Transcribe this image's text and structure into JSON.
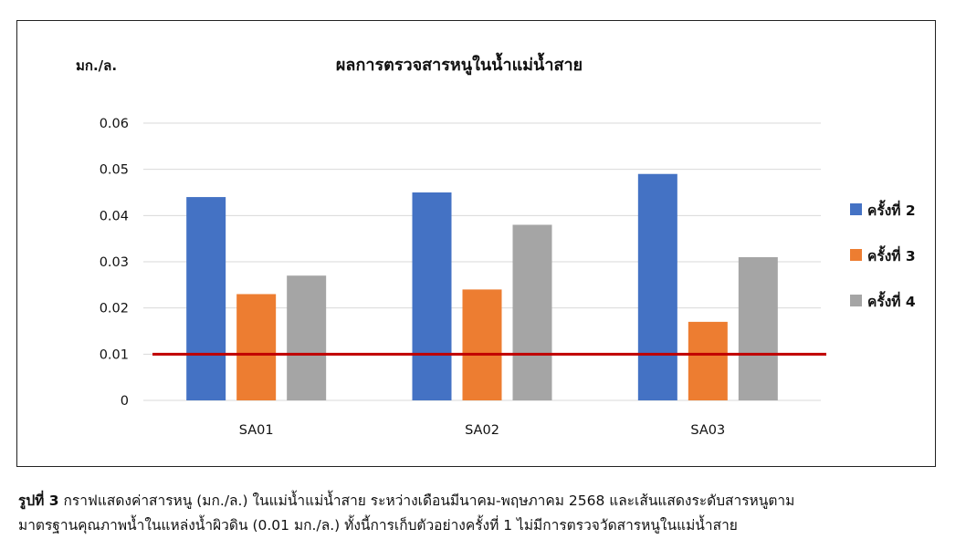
{
  "chart_data": {
    "type": "bar",
    "title": "ผลการตรวจสารหนูในน้ำแม่น้ำสาย",
    "ylabel": "มก./ล.",
    "xlabel": "",
    "categories": [
      "SA01",
      "SA02",
      "SA03"
    ],
    "series": [
      {
        "name": "ครั้งที่ 2",
        "color": "#4472c4",
        "values": [
          0.044,
          0.045,
          0.049
        ]
      },
      {
        "name": "ครั้งที่ 3",
        "color": "#ed7d31",
        "values": [
          0.023,
          0.024,
          0.017
        ]
      },
      {
        "name": "ครั้งที่ 4",
        "color": "#a5a5a5",
        "values": [
          0.027,
          0.038,
          0.031
        ]
      }
    ],
    "ylim": [
      0,
      0.06
    ],
    "yticks": [
      "0",
      "0.01",
      "0.02",
      "0.03",
      "0.04",
      "0.05",
      "0.06"
    ],
    "reference_line": {
      "value": 0.01,
      "color": "#c00000"
    },
    "grid": true,
    "legend_position": "right"
  },
  "caption": {
    "label": "รูปที่ 3",
    "line1": " กราฟแสดงค่าสารหนู (มก./ล.) ในแม่น้ำแม่น้ำสาย ระหว่างเดือนมีนาคม-พฤษภาคม 2568 และเส้นแสดงระดับสารหนูตาม",
    "line2": "มาตรฐานคุณภาพน้ำในแหล่งน้ำผิวดิน (0.01 มก./ล.) ทั้งนี้การเก็บตัวอย่างครั้งที่ 1 ไม่มีการตรวจวัดสารหนูในแม่น้ำสาย"
  }
}
